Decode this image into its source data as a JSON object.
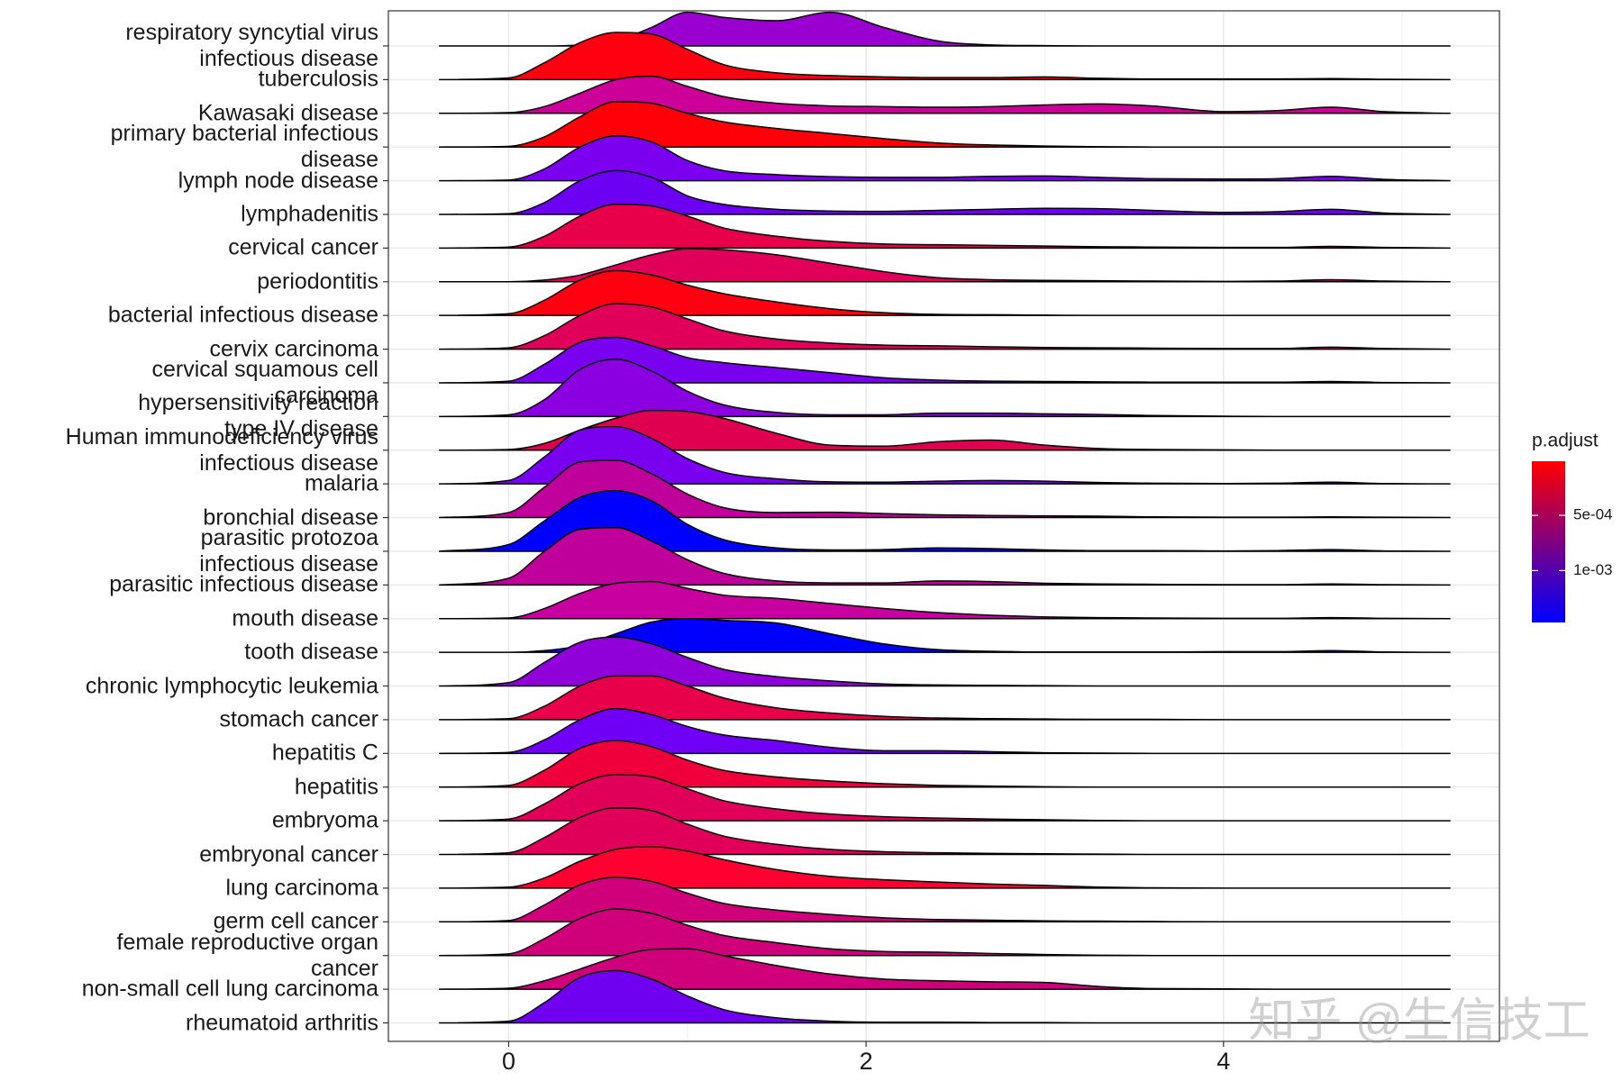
{
  "chart_data": {
    "type": "ridgeline",
    "x": [
      -0.39,
      0,
      0.2,
      0.4,
      0.6,
      0.8,
      1.0,
      1.2,
      1.5,
      1.8,
      2.1,
      2.4,
      2.7,
      3.0,
      3.3,
      3.6,
      4.0,
      4.3,
      4.6,
      4.9,
      5.27
    ],
    "series": [
      {
        "name": "respiratory syncytial virus\ninfectious disease",
        "color": "#9a00cf",
        "values": [
          0,
          0,
          0,
          0.03,
          0.15,
          0.55,
          1.0,
          0.85,
          0.75,
          1.0,
          0.55,
          0.15,
          0.03,
          0.01,
          0,
          0,
          0,
          0,
          0,
          0,
          0
        ]
      },
      {
        "name": "tuberculosis",
        "color": "#ff0010",
        "values": [
          0,
          0.05,
          0.5,
          1.1,
          1.4,
          1.35,
          0.9,
          0.45,
          0.2,
          0.12,
          0.08,
          0.06,
          0.06,
          0.08,
          0.04,
          0.02,
          0.02,
          0.02,
          0.03,
          0.01,
          0
        ]
      },
      {
        "name": "Kawasaki disease",
        "color": "#cc0099",
        "values": [
          0,
          0.02,
          0.2,
          0.6,
          1.0,
          1.1,
          0.8,
          0.5,
          0.3,
          0.22,
          0.2,
          0.18,
          0.2,
          0.25,
          0.28,
          0.22,
          0.05,
          0.08,
          0.18,
          0.05,
          0
        ]
      },
      {
        "name": "primary bacterial infectious\ndisease",
        "color": "#ff0008",
        "values": [
          0,
          0.02,
          0.3,
          0.9,
          1.35,
          1.3,
          1.0,
          0.75,
          0.55,
          0.4,
          0.25,
          0.12,
          0.06,
          0.03,
          0.01,
          0,
          0,
          0,
          0,
          0,
          0
        ]
      },
      {
        "name": "lymph node disease",
        "color": "#7b00f0",
        "values": [
          0,
          0.02,
          0.35,
          1.0,
          1.33,
          1.15,
          0.6,
          0.3,
          0.18,
          0.12,
          0.1,
          0.1,
          0.13,
          0.14,
          0.1,
          0.06,
          0.05,
          0.06,
          0.13,
          0.04,
          0
        ]
      },
      {
        "name": "lymphadenitis",
        "color": "#6c00f2",
        "values": [
          0,
          0.02,
          0.35,
          1.0,
          1.3,
          1.1,
          0.55,
          0.3,
          0.15,
          0.1,
          0.09,
          0.12,
          0.15,
          0.18,
          0.17,
          0.12,
          0.06,
          0.08,
          0.15,
          0.04,
          0
        ]
      },
      {
        "name": "cervical cancer",
        "color": "#e8004a",
        "values": [
          0,
          0.03,
          0.35,
          0.95,
          1.3,
          1.25,
          0.95,
          0.6,
          0.35,
          0.2,
          0.12,
          0.1,
          0.08,
          0.06,
          0.04,
          0.03,
          0.02,
          0.02,
          0.05,
          0.02,
          0
        ]
      },
      {
        "name": "periodontitis",
        "color": "#e0005a",
        "values": [
          0,
          0,
          0.05,
          0.2,
          0.5,
          0.8,
          0.98,
          0.95,
          0.8,
          0.55,
          0.3,
          0.12,
          0.06,
          0.04,
          0.03,
          0.02,
          0.01,
          0.02,
          0.06,
          0.02,
          0
        ]
      },
      {
        "name": "bacterial infectious disease",
        "color": "#ff0010",
        "values": [
          0,
          0.05,
          0.45,
          1.05,
          1.33,
          1.2,
          0.9,
          0.65,
          0.4,
          0.2,
          0.08,
          0.03,
          0.02,
          0.01,
          0,
          0,
          0,
          0,
          0,
          0,
          0
        ]
      },
      {
        "name": "cervix carcinoma",
        "color": "#e0005a",
        "values": [
          0,
          0.04,
          0.4,
          1.0,
          1.35,
          1.25,
          0.9,
          0.55,
          0.3,
          0.18,
          0.12,
          0.1,
          0.07,
          0.05,
          0.04,
          0.03,
          0.02,
          0.02,
          0.06,
          0.02,
          0
        ]
      },
      {
        "name": "cervical squamous cell\ncarcinoma",
        "color": "#7a00f0",
        "values": [
          0,
          0.05,
          0.55,
          1.2,
          1.35,
          1.1,
          0.75,
          0.6,
          0.45,
          0.3,
          0.15,
          0.08,
          0.05,
          0.04,
          0.03,
          0.02,
          0.02,
          0.02,
          0.04,
          0.01,
          0
        ]
      },
      {
        "name": "hypersensitivity reaction\ntype IV disease",
        "color": "#8a00e0",
        "values": [
          0,
          0.05,
          0.5,
          1.4,
          1.7,
          1.35,
          0.75,
          0.35,
          0.12,
          0.05,
          0.05,
          0.1,
          0.1,
          0.08,
          0.06,
          0.03,
          0.01,
          0,
          0,
          0,
          0
        ]
      },
      {
        "name": "Human immunodeficiency virus\ninfectious disease",
        "color": "#e00050",
        "values": [
          0,
          0.02,
          0.2,
          0.6,
          0.95,
          1.18,
          1.15,
          0.95,
          0.5,
          0.15,
          0.12,
          0.25,
          0.3,
          0.15,
          0.05,
          0.02,
          0.01,
          0,
          0,
          0,
          0
        ]
      },
      {
        "name": "malaria",
        "color": "#7a00f0",
        "values": [
          0,
          0.1,
          0.8,
          1.6,
          1.7,
          1.35,
          0.75,
          0.35,
          0.15,
          0.06,
          0.05,
          0.08,
          0.1,
          0.08,
          0.04,
          0.02,
          0.01,
          0.02,
          0.05,
          0.01,
          0
        ]
      },
      {
        "name": "bronchial disease",
        "color": "#c0009a",
        "values": [
          0,
          0.15,
          0.9,
          1.65,
          1.7,
          1.3,
          0.7,
          0.3,
          0.15,
          0.16,
          0.12,
          0.08,
          0.06,
          0.05,
          0.04,
          0.02,
          0.01,
          0.01,
          0.02,
          0.01,
          0
        ]
      },
      {
        "name": "parasitic protozoa\ninfectious disease",
        "color": "#0000ff",
        "values": [
          0,
          0.2,
          0.9,
          1.6,
          1.8,
          1.5,
          0.8,
          0.35,
          0.1,
          0.04,
          0.05,
          0.1,
          0.08,
          0.04,
          0.02,
          0.02,
          0.01,
          0.02,
          0.05,
          0.01,
          0
        ]
      },
      {
        "name": "parasitic infectious disease",
        "color": "#c0009a",
        "values": [
          0,
          0.2,
          1.0,
          1.65,
          1.7,
          1.3,
          0.75,
          0.35,
          0.12,
          0.06,
          0.06,
          0.12,
          0.1,
          0.05,
          0.03,
          0.02,
          0.01,
          0.01,
          0.03,
          0.01,
          0
        ]
      },
      {
        "name": "mouth disease",
        "color": "#c800a0",
        "values": [
          0,
          0.02,
          0.3,
          0.75,
          1.05,
          1.1,
          0.9,
          0.7,
          0.6,
          0.45,
          0.3,
          0.18,
          0.1,
          0.05,
          0.03,
          0.02,
          0.01,
          0.01,
          0.03,
          0.01,
          0
        ]
      },
      {
        "name": "tooth disease",
        "color": "#0000ff",
        "values": [
          0,
          0,
          0.05,
          0.2,
          0.55,
          0.9,
          1.0,
          0.95,
          0.87,
          0.55,
          0.25,
          0.08,
          0.03,
          0.01,
          0.01,
          0.01,
          0.02,
          0.02,
          0.05,
          0.01,
          0
        ]
      },
      {
        "name": "chronic lymphocytic leukemia",
        "color": "#9000d8",
        "values": [
          0,
          0.1,
          0.7,
          1.3,
          1.45,
          1.25,
          0.85,
          0.5,
          0.28,
          0.15,
          0.06,
          0.03,
          0.02,
          0.01,
          0,
          0,
          0,
          0,
          0,
          0,
          0
        ]
      },
      {
        "name": "stomach cancer",
        "color": "#e8004a",
        "values": [
          0,
          0.03,
          0.4,
          1.0,
          1.3,
          1.3,
          1.0,
          0.65,
          0.35,
          0.2,
          0.1,
          0.05,
          0.03,
          0.02,
          0.01,
          0.01,
          0,
          0,
          0,
          0,
          0
        ]
      },
      {
        "name": "hepatitis C",
        "color": "#7000f5",
        "values": [
          0,
          0.03,
          0.4,
          1.0,
          1.33,
          1.15,
          0.8,
          0.55,
          0.38,
          0.18,
          0.08,
          0.08,
          0.05,
          0.02,
          0.01,
          0,
          0,
          0,
          0,
          0,
          0
        ]
      },
      {
        "name": "hepatitis",
        "color": "#f0003a",
        "values": [
          0,
          0.05,
          0.5,
          1.15,
          1.38,
          1.2,
          0.8,
          0.5,
          0.3,
          0.18,
          0.1,
          0.05,
          0.03,
          0.01,
          0,
          0,
          0,
          0,
          0,
          0,
          0
        ]
      },
      {
        "name": "embryoma",
        "color": "#e0005a",
        "values": [
          0,
          0.05,
          0.5,
          1.1,
          1.37,
          1.3,
          0.95,
          0.6,
          0.35,
          0.2,
          0.12,
          0.08,
          0.05,
          0.03,
          0.01,
          0,
          0,
          0,
          0,
          0,
          0
        ]
      },
      {
        "name": "embryonal cancer",
        "color": "#e0005a",
        "values": [
          0,
          0.05,
          0.5,
          1.1,
          1.38,
          1.3,
          0.9,
          0.55,
          0.3,
          0.15,
          0.08,
          0.05,
          0.03,
          0.02,
          0.01,
          0,
          0,
          0,
          0,
          0,
          0
        ]
      },
      {
        "name": "lung carcinoma",
        "color": "#ff0030",
        "values": [
          0,
          0.03,
          0.3,
          0.8,
          1.15,
          1.23,
          1.1,
          0.85,
          0.55,
          0.35,
          0.25,
          0.18,
          0.12,
          0.08,
          0.03,
          0.01,
          0,
          0,
          0,
          0,
          0
        ]
      },
      {
        "name": "germ cell cancer",
        "color": "#d0007a",
        "values": [
          0,
          0.04,
          0.5,
          1.1,
          1.32,
          1.2,
          0.85,
          0.55,
          0.35,
          0.22,
          0.12,
          0.07,
          0.05,
          0.03,
          0.02,
          0.01,
          0,
          0,
          0,
          0,
          0
        ]
      },
      {
        "name": "female reproductive organ\ncancer",
        "color": "#d0007a",
        "values": [
          0,
          0.05,
          0.5,
          1.1,
          1.38,
          1.25,
          0.9,
          0.6,
          0.38,
          0.2,
          0.12,
          0.1,
          0.06,
          0.03,
          0.01,
          0,
          0,
          0,
          0,
          0,
          0
        ]
      },
      {
        "name": "non-small cell lung carcinoma",
        "color": "#d0007a",
        "values": [
          0,
          0.03,
          0.25,
          0.6,
          0.95,
          1.18,
          1.2,
          1.0,
          0.7,
          0.45,
          0.3,
          0.25,
          0.22,
          0.2,
          0.08,
          0.02,
          0.01,
          0,
          0,
          0,
          0
        ]
      },
      {
        "name": "rheumatoid arthritis",
        "color": "#7000f0",
        "values": [
          0,
          0.05,
          0.6,
          1.35,
          1.55,
          1.3,
          0.8,
          0.4,
          0.15,
          0.05,
          0.02,
          0.02,
          0.01,
          0.01,
          0,
          0,
          0,
          0,
          0,
          0,
          0
        ]
      }
    ],
    "xlim": [
      -0.673,
      5.544
    ],
    "xticks": [
      0,
      2,
      4
    ],
    "xminorticks": [
      1,
      3,
      5
    ],
    "grid": true,
    "colorbar": {
      "title": "p.adjust",
      "colors": [
        "#ff0000",
        "#0000ff"
      ],
      "lim": [
        1e-05,
        0.00147
      ],
      "ticks": [
        {
          "value": 0.0005,
          "label": "5e-04"
        },
        {
          "value": 0.001,
          "label": "1e-03"
        }
      ]
    },
    "annotations": [
      "知乎 @生信技工"
    ]
  }
}
